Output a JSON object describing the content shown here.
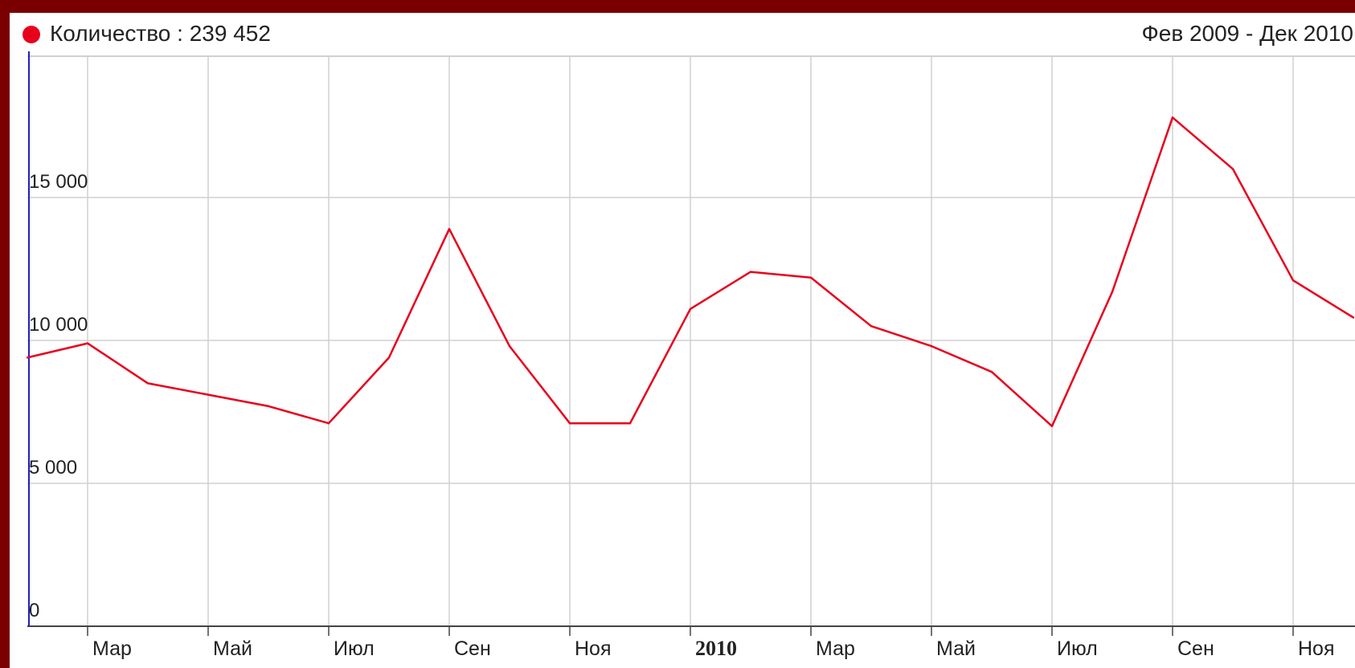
{
  "legend": {
    "label": "Количество : 239 452",
    "color": "#e8001c"
  },
  "range_label": "Фев 2009 - Дек 2010",
  "chart_data": {
    "type": "line",
    "x": [
      "Фев 2009",
      "Мар 2009",
      "Апр 2009",
      "Май 2009",
      "Июн 2009",
      "Июл 2009",
      "Авг 2009",
      "Сен 2009",
      "Окт 2009",
      "Ноя 2009",
      "Дек 2009",
      "Янв 2010",
      "Фев 2010",
      "Мар 2010",
      "Апр 2010",
      "Май 2010",
      "Июн 2010",
      "Июл 2010",
      "Авг 2010",
      "Сен 2010",
      "Окт 2010",
      "Ноя 2010",
      "Дек 2010"
    ],
    "series": [
      {
        "name": "Количество",
        "color": "#e8001c",
        "values": [
          9400,
          9900,
          8500,
          8100,
          7700,
          7100,
          9400,
          13900,
          9800,
          7100,
          7100,
          11100,
          12400,
          12200,
          10500,
          9800,
          8900,
          7000,
          11700,
          17800,
          16000,
          12100,
          10800
        ]
      }
    ],
    "y_ticks": [
      {
        "value": 0,
        "label": "0"
      },
      {
        "value": 5000,
        "label": "5 000"
      },
      {
        "value": 10000,
        "label": "10 000"
      },
      {
        "value": 15000,
        "label": "15 000"
      }
    ],
    "x_ticks": [
      {
        "index": 1,
        "label": "Мар",
        "bold": false
      },
      {
        "index": 3,
        "label": "Май",
        "bold": false
      },
      {
        "index": 5,
        "label": "Июл",
        "bold": false
      },
      {
        "index": 7,
        "label": "Сен",
        "bold": false
      },
      {
        "index": 9,
        "label": "Ноя",
        "bold": false
      },
      {
        "index": 11,
        "label": "2010",
        "bold": true
      },
      {
        "index": 13,
        "label": "Мар",
        "bold": false
      },
      {
        "index": 15,
        "label": "Май",
        "bold": false
      },
      {
        "index": 17,
        "label": "Июл",
        "bold": false
      },
      {
        "index": 19,
        "label": "Сен",
        "bold": false
      },
      {
        "index": 21,
        "label": "Ноя",
        "bold": false
      }
    ],
    "ylim": [
      0,
      20000
    ],
    "grid": true,
    "legend_position": "top-left",
    "grid_color": "#d0d0d0",
    "axis_color": "#444444",
    "left_axis_color": "#2020c0"
  }
}
